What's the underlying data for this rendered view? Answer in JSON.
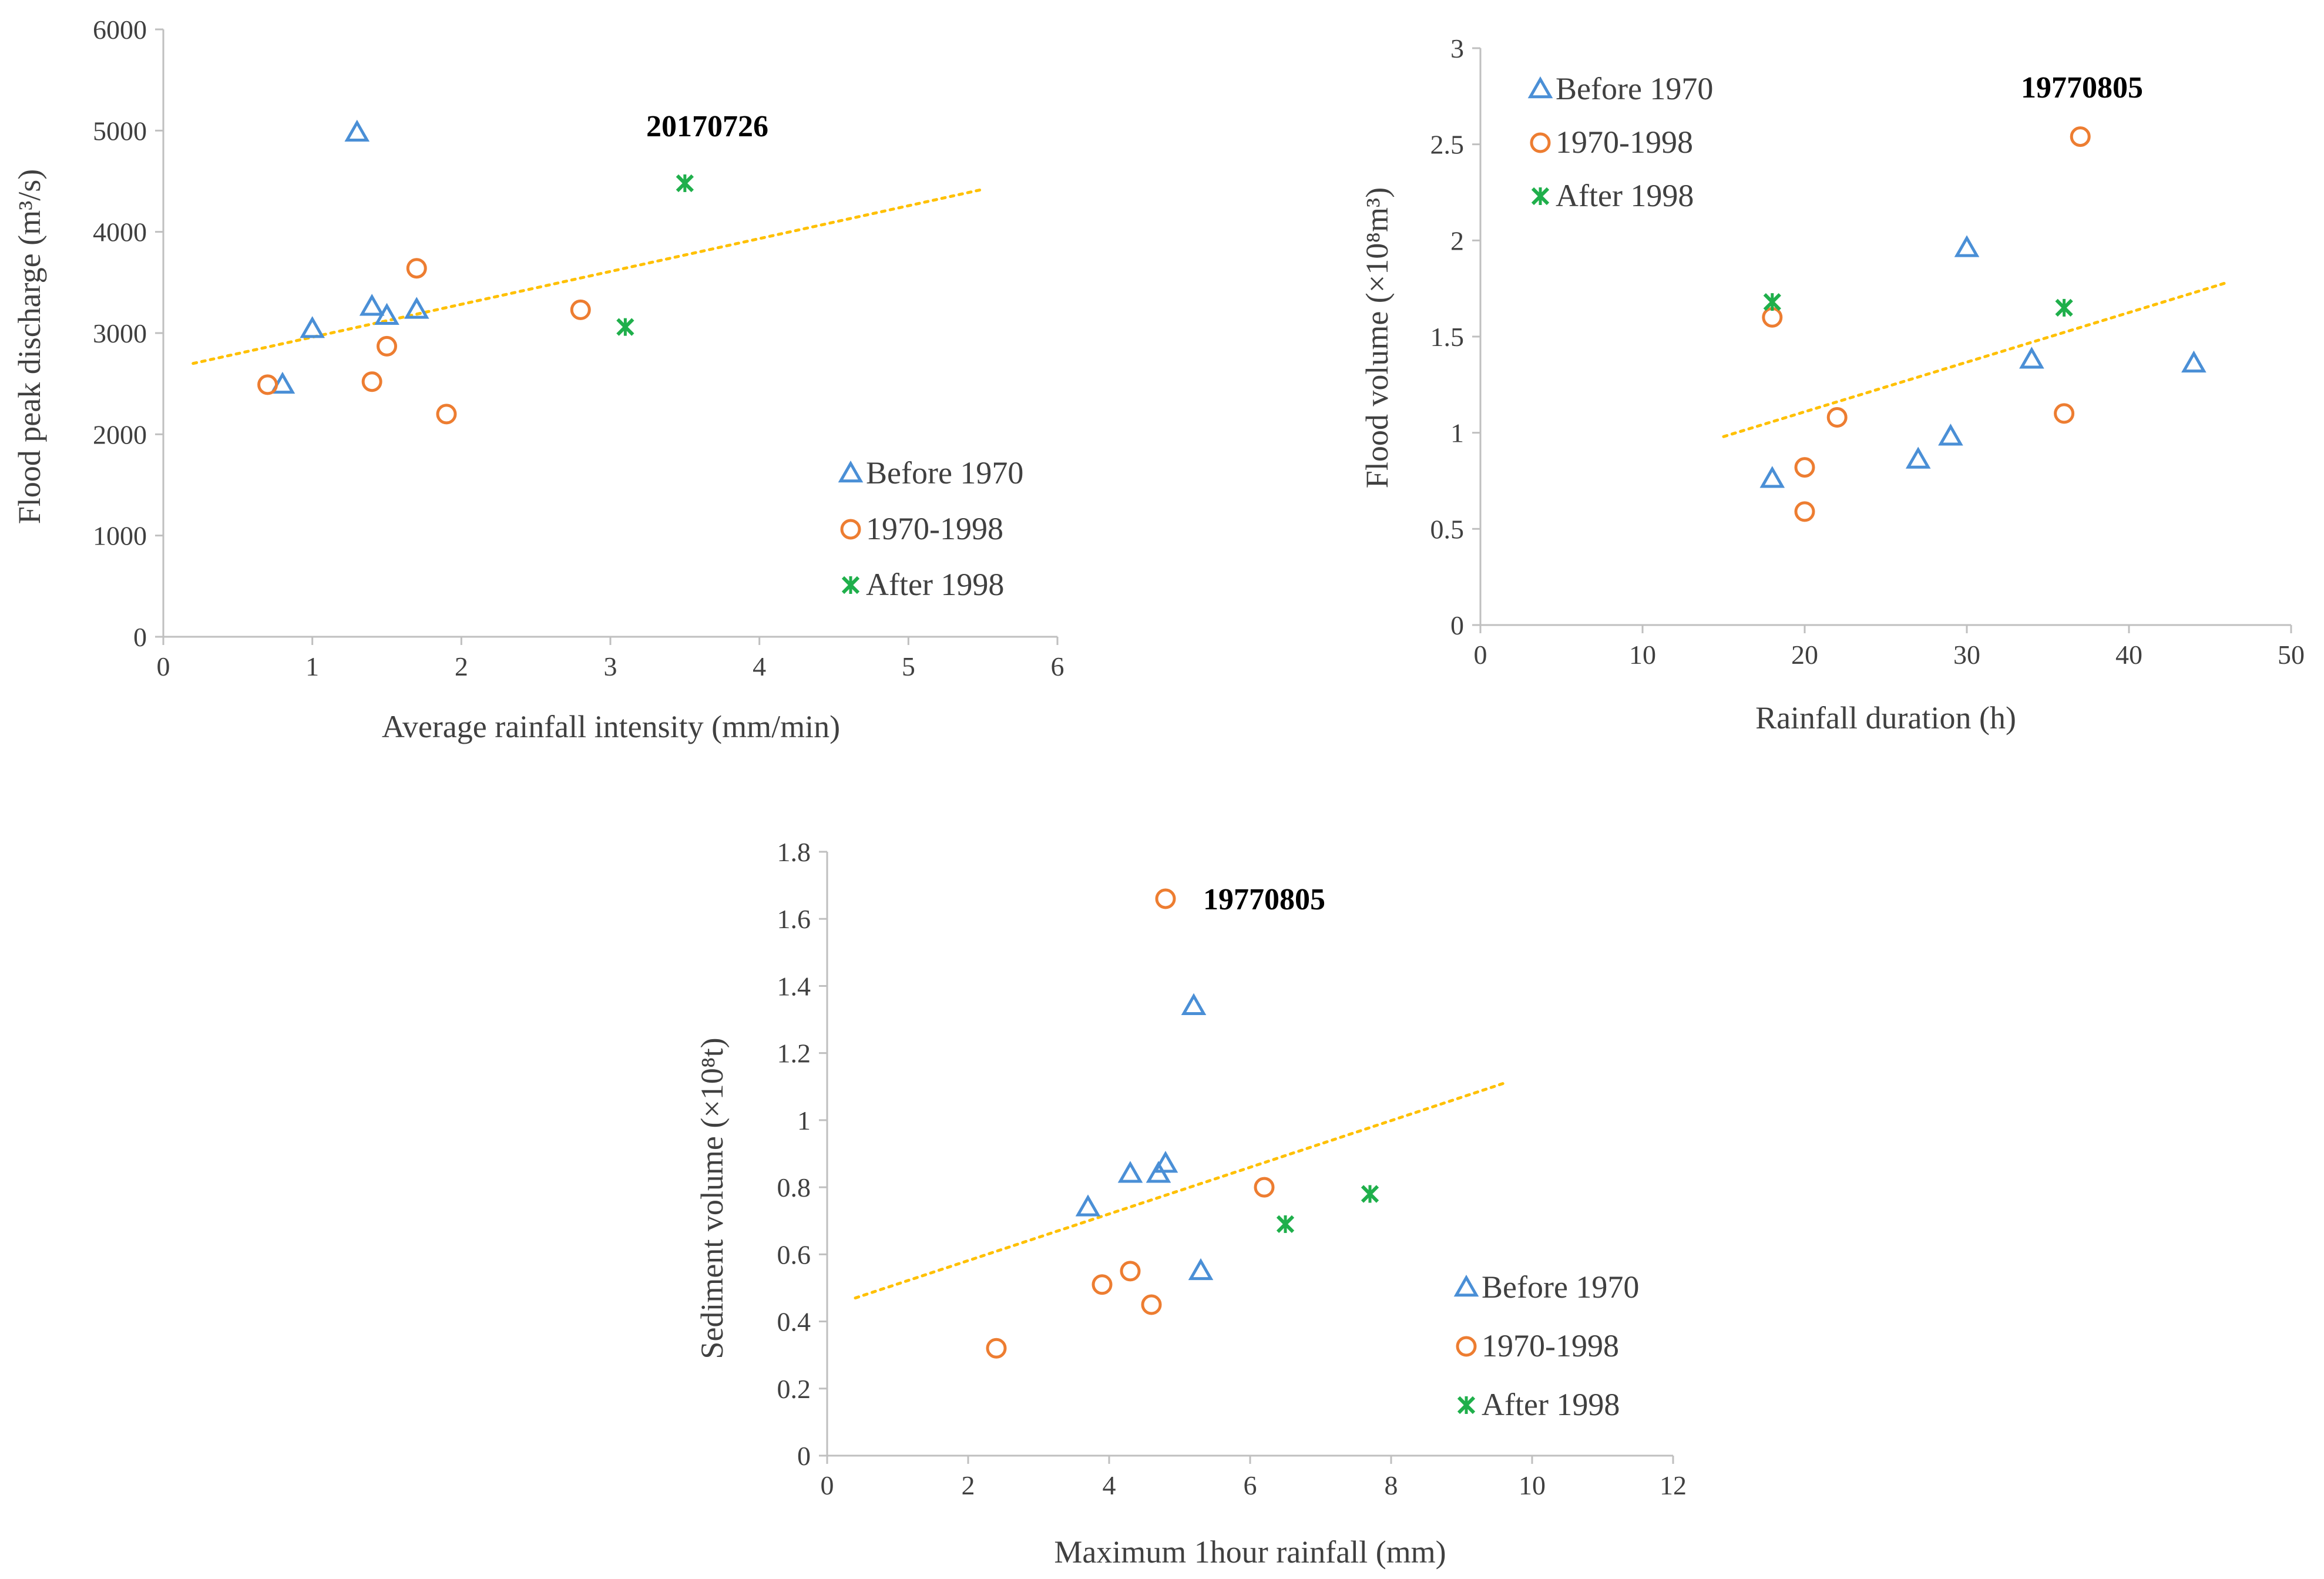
{
  "colors": {
    "before_1970": "#4A8FD6",
    "y1970_1998": "#ED7D31",
    "after_1998": "#1FAF4B",
    "trendline": "#FFC000",
    "axis": "#BFBFBF"
  },
  "chart_data": [
    {
      "id": "peak",
      "type": "scatter",
      "xlabel": "Average rainfall intensity (mm/min)",
      "ylabel": "Flood peak discharge (m³/s)",
      "xlim": [
        0,
        6
      ],
      "ylim": [
        0,
        6000
      ],
      "xticks": [
        0,
        1,
        2,
        3,
        4,
        5,
        6
      ],
      "yticks": [
        0,
        1000,
        2000,
        3000,
        4000,
        5000,
        6000
      ],
      "series": [
        {
          "name": "Before 1970",
          "marker": "triangle",
          "points": [
            [
              0.8,
              2490
            ],
            [
              1.0,
              3040
            ],
            [
              1.3,
              4980
            ],
            [
              1.4,
              3260
            ],
            [
              1.5,
              3170
            ],
            [
              1.7,
              3230
            ]
          ]
        },
        {
          "name": "1970-1998",
          "marker": "circle",
          "points": [
            [
              0.7,
              2490
            ],
            [
              1.4,
              2520
            ],
            [
              1.5,
              2870
            ],
            [
              1.7,
              3640
            ],
            [
              1.9,
              2200
            ],
            [
              2.8,
              3230
            ]
          ]
        },
        {
          "name": "After 1998",
          "marker": "star",
          "points": [
            [
              3.1,
              3060
            ],
            [
              3.5,
              4480
            ]
          ]
        }
      ],
      "trendline": [
        [
          0.2,
          2700
        ],
        [
          5.5,
          4420
        ]
      ],
      "annotations": [
        {
          "text": "20170726",
          "x": 3.4,
          "y": 5000
        }
      ],
      "legend_position": "bottom-right"
    },
    {
      "id": "volume",
      "type": "scatter",
      "xlabel": "Rainfall duration (h)",
      "ylabel": "Flood volume (×10⁸m³)",
      "xlim": [
        0,
        50
      ],
      "ylim": [
        0,
        3
      ],
      "xticks": [
        0,
        10,
        20,
        30,
        40,
        50
      ],
      "yticks": [
        0,
        0.5,
        1,
        1.5,
        2,
        2.5,
        3
      ],
      "series": [
        {
          "name": "Before 1970",
          "marker": "triangle",
          "points": [
            [
              18,
              0.76
            ],
            [
              27,
              0.86
            ],
            [
              29,
              0.98
            ],
            [
              30,
              1.96
            ],
            [
              34,
              1.38
            ],
            [
              44,
              1.36
            ]
          ]
        },
        {
          "name": "1970-1998",
          "marker": "circle",
          "points": [
            [
              18,
              1.6
            ],
            [
              20,
              0.82
            ],
            [
              20,
              0.59
            ],
            [
              22,
              1.08
            ],
            [
              36,
              1.1
            ],
            [
              37,
              2.54
            ]
          ]
        },
        {
          "name": "After 1998",
          "marker": "star",
          "points": [
            [
              18,
              1.68
            ],
            [
              36,
              1.65
            ]
          ]
        }
      ],
      "trendline": [
        [
          15,
          0.98
        ],
        [
          46,
          1.78
        ]
      ],
      "annotations": [
        {
          "text": "19770805",
          "x": 38.5,
          "y": 2.78
        }
      ],
      "legend_position": "top-left"
    },
    {
      "id": "sediment",
      "type": "scatter",
      "xlabel": "Maximum  1hour rainfall (mm)",
      "ylabel": "Sediment volume (×10⁸t)",
      "xlim": [
        0,
        12
      ],
      "ylim": [
        0,
        1.8
      ],
      "xticks": [
        0,
        2,
        4,
        6,
        8,
        10,
        12
      ],
      "yticks": [
        0,
        0.2,
        0.4,
        0.6,
        0.8,
        1,
        1.2,
        1.4,
        1.6,
        1.8
      ],
      "series": [
        {
          "name": "Before 1970",
          "marker": "triangle",
          "points": [
            [
              3.7,
              0.74
            ],
            [
              4.3,
              0.84
            ],
            [
              4.7,
              0.84
            ],
            [
              4.8,
              0.87
            ],
            [
              5.2,
              1.34
            ],
            [
              5.3,
              0.55
            ]
          ]
        },
        {
          "name": "1970-1998",
          "marker": "circle",
          "points": [
            [
              2.4,
              0.32
            ],
            [
              3.9,
              0.51
            ],
            [
              4.3,
              0.55
            ],
            [
              4.6,
              0.45
            ],
            [
              4.8,
              1.66
            ],
            [
              6.2,
              0.8
            ]
          ]
        },
        {
          "name": "After 1998",
          "marker": "star",
          "points": [
            [
              6.5,
              0.69
            ],
            [
              7.7,
              0.78
            ]
          ]
        }
      ],
      "trendline": [
        [
          0.4,
          0.47
        ],
        [
          9.6,
          1.11
        ]
      ],
      "annotations": [
        {
          "text": "19770805",
          "x": 6.3,
          "y": 1.66
        }
      ],
      "legend_position": "bottom-right"
    }
  ]
}
